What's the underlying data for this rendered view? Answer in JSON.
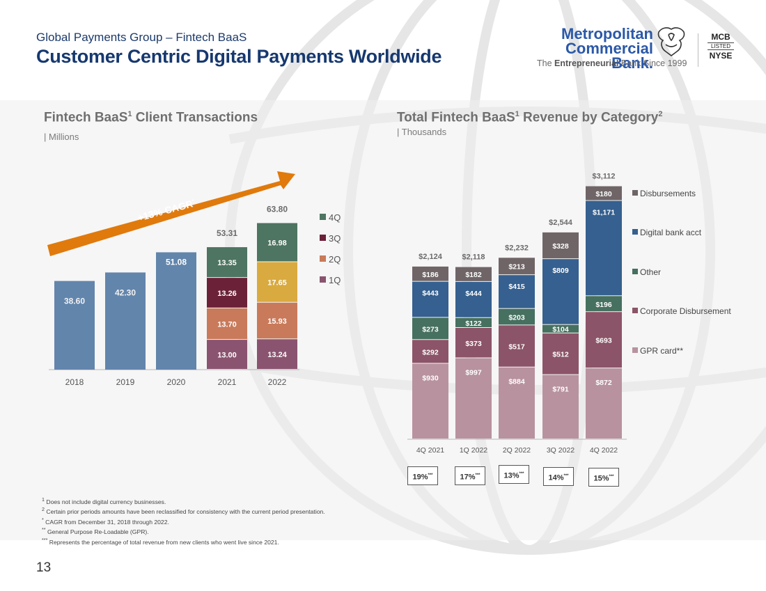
{
  "header": {
    "subtitle": "Global Payments Group – Fintech BaaS",
    "title": "Customer Centric Digital Payments Worldwide"
  },
  "logo": {
    "name_line1": "Metropolitan",
    "name_line2": "Commercial Bank.",
    "tagline_pre": "The ",
    "tagline_bold": "Entrepreneurial",
    "tagline_post": " Bank Since 1999",
    "ticker": "MCB",
    "listed": "LISTED",
    "exchange": "NYSE"
  },
  "chart_data": [
    {
      "type": "bar",
      "title": "Fintech BaaS",
      "title_sup": "1",
      "title_rest": " Client Transactions",
      "subtitle": "| Millions",
      "categories": [
        "2018",
        "2019",
        "2020",
        "2021",
        "2022"
      ],
      "totals": [
        "38.60",
        "42.30",
        "51.08",
        "53.31",
        "63.80"
      ],
      "stacked_series": [
        {
          "name": "1Q",
          "color": "#8a5470",
          "values": [
            null,
            null,
            null,
            13.0,
            13.24
          ]
        },
        {
          "name": "2Q",
          "color": "#c97a5a",
          "values": [
            null,
            null,
            null,
            13.7,
            15.93
          ]
        },
        {
          "name": "3Q",
          "color": "#6b2238",
          "values": [
            null,
            null,
            null,
            13.26,
            17.65
          ]
        },
        {
          "name": "4Q",
          "color": "#4d7561",
          "values": [
            null,
            null,
            null,
            13.35,
            16.98
          ]
        }
      ],
      "series_2022_colors": [
        "#8a5470",
        "#c97a5a",
        "#d9aa3f",
        "#4d7561"
      ],
      "annual_color": "#6285ac",
      "legend": [
        "4Q",
        "3Q",
        "2Q",
        "1Q"
      ],
      "legend_colors": [
        "#4d7561",
        "#6b2238",
        "#c97a5a",
        "#8a5470"
      ],
      "annotation": "+13% CAGR",
      "annotation_sup": "*",
      "ylim": [
        0,
        70
      ]
    },
    {
      "type": "bar",
      "title": "Total Fintech BaaS",
      "title_sup": "1",
      "title_rest": " Revenue by Category",
      "title_sup2": "2",
      "subtitle": "| Thousands",
      "categories": [
        "4Q 2021",
        "1Q 2022",
        "2Q 2022",
        "3Q 2022",
        "4Q 2022"
      ],
      "totals": [
        "$2,124",
        "$2,118",
        "$2,232",
        "$2,544",
        "$3,112"
      ],
      "series": [
        {
          "name": "GPR card**",
          "color": "#b8929f",
          "values": [
            930,
            997,
            884,
            791,
            872
          ],
          "labels": [
            "$930",
            "$997",
            "$884",
            "$791",
            "$872"
          ]
        },
        {
          "name": "Corporate Disbursement",
          "color": "#8c5468",
          "values": [
            292,
            373,
            517,
            512,
            693
          ],
          "labels": [
            "$292",
            "$373",
            "$517",
            "$512",
            "$693"
          ]
        },
        {
          "name": "Other",
          "color": "#46705f",
          "values": [
            273,
            122,
            203,
            104,
            196
          ],
          "labels": [
            "$273",
            "$122",
            "$203",
            "$104",
            "$196"
          ]
        },
        {
          "name": "Digital bank acct",
          "color": "#35608f",
          "values": [
            443,
            444,
            415,
            809,
            1171
          ],
          "labels": [
            "$443",
            "$444",
            "$415",
            "$809",
            "$1,171"
          ]
        },
        {
          "name": "Disbursements",
          "color": "#6f6567",
          "values": [
            186,
            182,
            213,
            328,
            180
          ],
          "labels": [
            "$186",
            "$182",
            "$213",
            "$328",
            "$180"
          ]
        }
      ],
      "new_client_pct": [
        "19%",
        "17%",
        "13%",
        "14%",
        "15%"
      ],
      "new_client_pct_sup": "***",
      "ylim": [
        0,
        3200
      ]
    }
  ],
  "footnotes": [
    {
      "sup": "1",
      "text": " Does not include digital currency businesses."
    },
    {
      "sup": "2",
      "text": " Certain prior periods amounts have been reclassified for consistency with the current period presentation."
    },
    {
      "sup": "*",
      "text": " CAGR from December 31, 2018 through 2022."
    },
    {
      "sup": "**",
      "text": " General Purpose Re-Loadable  (GPR)."
    },
    {
      "sup": "***",
      "text": " Represents the percentage of total revenue from new clients who went live since 2021."
    }
  ],
  "page_number": "13"
}
